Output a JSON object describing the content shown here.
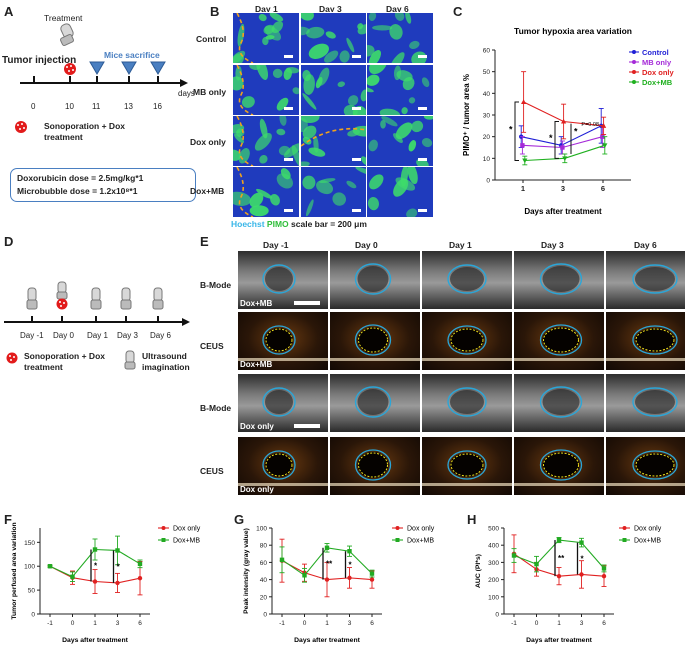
{
  "panels": {
    "A": "A",
    "B": "B",
    "C": "C",
    "D": "D",
    "E": "E",
    "F": "F",
    "G": "G",
    "H": "H"
  },
  "panelA": {
    "treatment": "Treatment",
    "tumor_injection": "Tumor injection",
    "mice_sacrifice": "Mice sacrifice",
    "ticks": [
      "0",
      "10",
      "11",
      "13",
      "16"
    ],
    "days": "days",
    "legend": "Sonoporation + Dox treatment",
    "dose1": "Doxorubicin dose = 2.5mg/kg*1",
    "dose2": "Microbubble dose = 1.2x10⁸*1"
  },
  "panelB": {
    "cols": [
      "Day 1",
      "Day 3",
      "Day 6"
    ],
    "rows": [
      "Control",
      "MB only",
      "Dox only",
      "Dox+MB"
    ],
    "caption_hoechst": "Hoechst",
    "caption_pimo": "PIMO",
    "caption_scale": "scale bar = 200 μm",
    "colors": {
      "blue": "#1f3bbd",
      "green": "#3ddc6a",
      "dash": "#f0a21c"
    }
  },
  "panelD": {
    "ticks": [
      "Day -1",
      "Day 0",
      "Day 1",
      "Day 3",
      "Day 6"
    ],
    "legend1": "Sonoporation + Dox treatment",
    "legend2": "Ultrasound imagination"
  },
  "panelE": {
    "cols": [
      "Day -1",
      "Day 0",
      "Day 1",
      "Day 3",
      "Day 6"
    ],
    "rows": [
      "B-Mode",
      "CEUS",
      "B-Mode",
      "CEUS"
    ],
    "tags": [
      "Dox+MB",
      "Dox+MB",
      "Dox only",
      "Dox only"
    ]
  },
  "chart_data": [
    {
      "id": "C",
      "type": "line",
      "title": "Tumor hypoxia area variation",
      "xlabel": "Days after treatment",
      "ylabel": "PIMO⁺ / tumor area %",
      "categories": [
        "1",
        "3",
        "6"
      ],
      "ylim": [
        0,
        60
      ],
      "yticks": [
        "0",
        "10",
        "20",
        "30",
        "40",
        "50",
        "60"
      ],
      "series": [
        {
          "name": "Control",
          "color": "#1f1fd6",
          "marker": "circle",
          "values": [
            20,
            16,
            25
          ],
          "err": [
            5,
            4,
            8
          ]
        },
        {
          "name": "MB only",
          "color": "#a52ad8",
          "marker": "square",
          "values": [
            16,
            15,
            20
          ],
          "err": [
            4,
            3,
            5
          ]
        },
        {
          "name": "Dox only",
          "color": "#e02020",
          "marker": "triangle",
          "values": [
            36,
            27,
            25
          ],
          "err": [
            14,
            8,
            4
          ]
        },
        {
          "name": "Dox+MB",
          "color": "#1fb01f",
          "marker": "triangle-down",
          "values": [
            9,
            10,
            16
          ],
          "err": [
            2,
            2,
            4
          ]
        }
      ],
      "annotations": [
        "*",
        "*",
        "*",
        "P=0.08"
      ]
    },
    {
      "id": "F",
      "type": "line",
      "title": "",
      "xlabel": "Days after treatment",
      "ylabel": "Tumor perfused area variation",
      "categories": [
        "-1",
        "0",
        "1",
        "3",
        "6"
      ],
      "ylim": [
        0,
        180
      ],
      "yticks": [
        "0",
        "50",
        "100",
        "150"
      ],
      "series": [
        {
          "name": "Dox only",
          "color": "#e02020",
          "values": [
            100,
            76,
            68,
            65,
            75
          ],
          "err": [
            2,
            14,
            25,
            20,
            35
          ]
        },
        {
          "name": "Dox+MB",
          "color": "#22aa22",
          "values": [
            100,
            78,
            135,
            133,
            105
          ],
          "err": [
            2,
            10,
            22,
            30,
            8
          ]
        }
      ],
      "annotations": [
        "*",
        "*"
      ]
    },
    {
      "id": "G",
      "type": "line",
      "title": "",
      "xlabel": "Days after treatment",
      "ylabel": "Peak intensity (gray value)",
      "categories": [
        "-1",
        "0",
        "1",
        "3",
        "6"
      ],
      "ylim": [
        0,
        100
      ],
      "yticks": [
        "0",
        "20",
        "40",
        "60",
        "80",
        "100"
      ],
      "series": [
        {
          "name": "Dox only",
          "color": "#e02020",
          "values": [
            62,
            48,
            40,
            42,
            40
          ],
          "err": [
            25,
            10,
            20,
            12,
            10
          ]
        },
        {
          "name": "Dox+MB",
          "color": "#22aa22",
          "values": [
            63,
            45,
            77,
            73,
            47
          ],
          "err": [
            15,
            8,
            5,
            6,
            4
          ]
        }
      ],
      "annotations": [
        "**",
        "*"
      ]
    },
    {
      "id": "H",
      "type": "line",
      "title": "",
      "xlabel": "Days after treatment",
      "ylabel": "AUC (PI*s)",
      "categories": [
        "-1",
        "0",
        "1",
        "3",
        "6"
      ],
      "ylim": [
        0,
        500
      ],
      "yticks": [
        "0",
        "100",
        "200",
        "300",
        "400",
        "500"
      ],
      "series": [
        {
          "name": "Dox only",
          "color": "#e02020",
          "values": [
            350,
            260,
            220,
            230,
            220
          ],
          "err": [
            110,
            40,
            50,
            80,
            60
          ]
        },
        {
          "name": "Dox+MB",
          "color": "#22aa22",
          "values": [
            340,
            290,
            430,
            415,
            265
          ],
          "err": [
            40,
            45,
            15,
            25,
            20
          ]
        }
      ],
      "annotations": [
        "**",
        "*"
      ]
    }
  ]
}
